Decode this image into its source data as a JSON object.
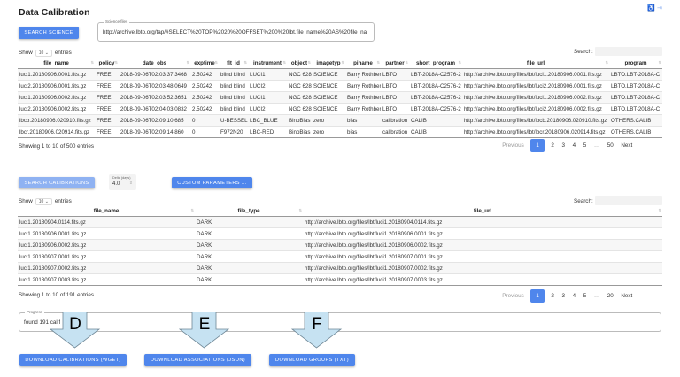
{
  "header": {
    "title": "Data Calibration",
    "icons": [
      "accessibility-icon",
      "logout-icon"
    ]
  },
  "science": {
    "search_button": "Search Science",
    "field_label": "Science files",
    "field_value": "http://archive.lbto.org/tap/#SELECT%20TOP%2020%20OFFSET%200%20lbt.file_name%20AS%20file_na"
  },
  "science_table": {
    "show_label": "Show",
    "page_size": "10",
    "entries_label": "entries",
    "search_label": "Search:",
    "columns": [
      "file_name",
      "policy",
      "date_obs",
      "exptime",
      "flt_id",
      "instrument",
      "object",
      "imagetyp",
      "piname",
      "partner",
      "short_program",
      "file_url",
      "program"
    ],
    "rows": [
      [
        "luci1.20180906.0001.fits.gz",
        "FREE",
        "2018-09-06T02:03:37.3468",
        "2.50242",
        "blind blind",
        "LUCI1",
        "NGC 628",
        "SCIENCE",
        "Barry Rothberg",
        "LBTO",
        "LBT-2018A-C2576-2",
        "http://archive.lbto.org/files/lbt/luci1.20180906.0001.fits.gz",
        "LBTO.LBT-2018A-C"
      ],
      [
        "luci2.20180906.0001.fits.gz",
        "FREE",
        "2018-09-06T02:03:48.0649",
        "2.50242",
        "blind blind",
        "LUCI2",
        "NGC 628",
        "SCIENCE",
        "Barry Rothberg",
        "LBTO",
        "LBT-2018A-C2576-2",
        "http://archive.lbto.org/files/lbt/luci2.20180906.0001.fits.gz",
        "LBTO.LBT-2018A-C"
      ],
      [
        "luci1.20180906.0002.fits.gz",
        "FREE",
        "2018-09-06T02:03:52.3651",
        "2.50242",
        "blind blind",
        "LUCI1",
        "NGC 628",
        "SCIENCE",
        "Barry Rothberg",
        "LBTO",
        "LBT-2018A-C2576-2",
        "http://archive.lbto.org/files/lbt/luci1.20180906.0002.fits.gz",
        "LBTO.LBT-2018A-C"
      ],
      [
        "luci2.20180906.0002.fits.gz",
        "FREE",
        "2018-09-06T02:04:03.0832",
        "2.50242",
        "blind blind",
        "LUCI2",
        "NGC 628",
        "SCIENCE",
        "Barry Rothberg",
        "LBTO",
        "LBT-2018A-C2576-2",
        "http://archive.lbto.org/files/lbt/luci2.20180906.0002.fits.gz",
        "LBTO.LBT-2018A-C"
      ],
      [
        "lbcb.20180906.020910.fits.gz",
        "FREE",
        "2018-09-06T02:09:10.685",
        "0",
        "U-BESSEL",
        "LBC_BLUE",
        "BinoBias",
        "zero",
        "bias",
        "calibration",
        "CALIB",
        "http://archive.lbto.org/files/lbt/lbcb.20180906.020910.fits.gz",
        "OTHERS.CALIB"
      ],
      [
        "lbcr.20180906.020914.fits.gz",
        "FREE",
        "2018-09-06T02:09:14.860",
        "0",
        "F972N20",
        "LBC-RED",
        "BinoBias",
        "zero",
        "bias",
        "calibration",
        "CALIB",
        "http://archive.lbto.org/files/lbt/lbcr.20180906.020914.fits.gz",
        "OTHERS.CALIB"
      ]
    ],
    "info": "Showing 1 to 10 of 500 entries",
    "pagination": {
      "previous": "Previous",
      "pages": [
        "1",
        "2",
        "3",
        "4",
        "5",
        "…",
        "50"
      ],
      "current": "1",
      "next": "Next"
    }
  },
  "calibration": {
    "search_button": "Search Calibrations",
    "delta_label": "Delta (days)",
    "delta_value": "4.0",
    "custom_button": "Custom Parameters ..."
  },
  "cal_table": {
    "show_label": "Show",
    "page_size": "10",
    "entries_label": "entries",
    "search_label": "Search:",
    "columns": [
      "file_name",
      "file_type",
      "file_url"
    ],
    "rows": [
      [
        "luci1.20180904.0114.fits.gz",
        "DARK",
        "http://archive.lbto.org/files/lbt/luci1.20180904.0114.fits.gz"
      ],
      [
        "luci1.20180906.0001.fits.gz",
        "DARK",
        "http://archive.lbto.org/files/lbt/luci1.20180906.0001.fits.gz"
      ],
      [
        "luci1.20180906.0002.fits.gz",
        "DARK",
        "http://archive.lbto.org/files/lbt/luci1.20180906.0002.fits.gz"
      ],
      [
        "luci1.20180907.0001.fits.gz",
        "DARK",
        "http://archive.lbto.org/files/lbt/luci1.20180907.0001.fits.gz"
      ],
      [
        "luci1.20180907.0002.fits.gz",
        "DARK",
        "http://archive.lbto.org/files/lbt/luci1.20180907.0002.fits.gz"
      ],
      [
        "luci1.20180907.0003.fits.gz",
        "DARK",
        "http://archive.lbto.org/files/lbt/luci1.20180907.0003.fits.gz"
      ]
    ],
    "info": "Showing 1 to 10 of 191 entries",
    "pagination": {
      "previous": "Previous",
      "pages": [
        "1",
        "2",
        "3",
        "4",
        "5",
        "…",
        "20"
      ],
      "current": "1",
      "next": "Next"
    }
  },
  "progress": {
    "label": "Progress",
    "value": "found 191 cal f"
  },
  "downloads": {
    "calibrations": "Download Calibrations (WGET)",
    "associations": "Download Associations (JSON)",
    "groups": "Download Groups (TXT)"
  },
  "annotations": {
    "arrow_d": "D",
    "arrow_e": "E",
    "arrow_f": "F"
  },
  "colors": {
    "primary": "#4f86ec",
    "primary_disabled": "#8fb2f2",
    "arrow_fill": "#c6e2f2"
  }
}
